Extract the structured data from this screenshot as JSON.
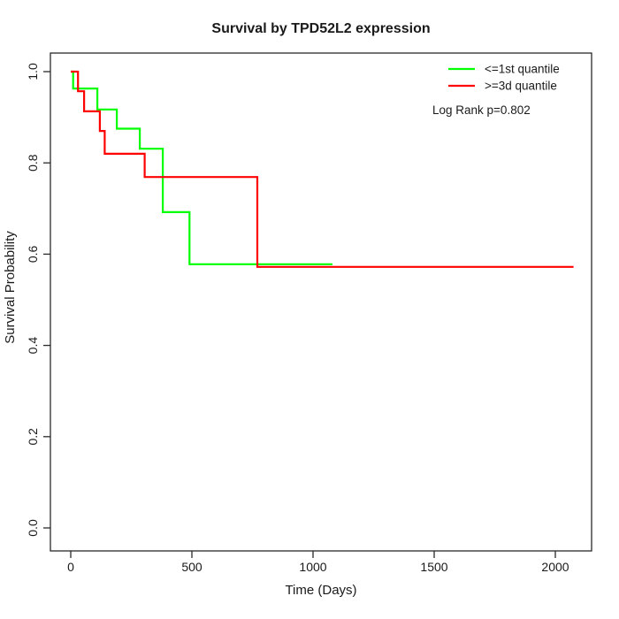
{
  "chart_data": {
    "type": "line",
    "subtype": "kaplan-meier-step-survival",
    "title": "Survival by TPD52L2 expression",
    "xlabel": "Time (Days)",
    "ylabel": "Survival Probability",
    "xlim": [
      0,
      2000
    ],
    "ylim": [
      0.0,
      1.0
    ],
    "x_ticks": [
      "0",
      "500",
      "1000",
      "1500",
      "2000"
    ],
    "y_ticks": [
      "0.0",
      "0.2",
      "0.4",
      "0.6",
      "0.8",
      "1.0"
    ],
    "grid": false,
    "legend_position": "top-right-inside",
    "annotation": "Log Rank p=0.802",
    "axis_color": "#2a2a2a",
    "series": [
      {
        "name": "<=1st quantile",
        "color": "#00ff00",
        "points": [
          [
            0,
            1.0
          ],
          [
            10,
            0.963
          ],
          [
            110,
            0.917
          ],
          [
            190,
            0.875
          ],
          [
            285,
            0.831
          ],
          [
            380,
            0.692
          ],
          [
            490,
            0.578
          ],
          [
            1080,
            0.578
          ]
        ]
      },
      {
        "name": ">=3d quantile",
        "color": "#ff0000",
        "points": [
          [
            0,
            1.0
          ],
          [
            30,
            0.957
          ],
          [
            55,
            0.913
          ],
          [
            120,
            0.87
          ],
          [
            140,
            0.82
          ],
          [
            305,
            0.769
          ],
          [
            770,
            0.572
          ],
          [
            2075,
            0.572
          ]
        ]
      }
    ]
  }
}
